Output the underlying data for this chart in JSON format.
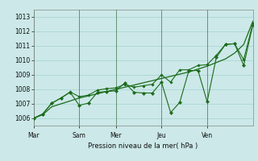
{
  "xlabel": "Pression niveau de la mer( hPa )",
  "background_color": "#cce8e8",
  "plot_bg_color": "#cce8e8",
  "grid_color": "#99cccc",
  "line_color": "#1a6b1a",
  "ylim": [
    1005.5,
    1013.5
  ],
  "yticks": [
    1006,
    1007,
    1008,
    1009,
    1010,
    1011,
    1012,
    1013
  ],
  "xtick_labels": [
    "Mar",
    "Sam",
    "Mer",
    "Jeu",
    "Ven"
  ],
  "xtick_positions": [
    0,
    5,
    9,
    14,
    19
  ],
  "vline_positions": [
    0,
    5,
    9,
    14,
    19,
    24
  ],
  "xlim": [
    0,
    24
  ],
  "series1_x": [
    0,
    1,
    2,
    3,
    4,
    5,
    6,
    7,
    8,
    9,
    10,
    11,
    12,
    13,
    14,
    15,
    16,
    17,
    18,
    19,
    20,
    21,
    22,
    23,
    24
  ],
  "series1_y": [
    1006.0,
    1006.25,
    1006.8,
    1007.0,
    1007.2,
    1007.4,
    1007.55,
    1007.7,
    1007.85,
    1008.0,
    1008.15,
    1008.3,
    1008.45,
    1008.6,
    1008.75,
    1008.9,
    1009.05,
    1009.2,
    1009.4,
    1009.6,
    1009.85,
    1010.1,
    1010.5,
    1011.1,
    1012.7
  ],
  "series2_x": [
    0,
    1,
    2,
    3,
    4,
    5,
    6,
    7,
    8,
    9,
    10,
    11,
    12,
    13,
    14,
    15,
    16,
    17,
    18,
    19,
    20,
    21,
    22,
    23,
    24
  ],
  "series2_y": [
    1006.0,
    1006.3,
    1007.05,
    1007.4,
    1007.8,
    1006.9,
    1007.05,
    1007.8,
    1007.85,
    1007.9,
    1008.45,
    1007.8,
    1007.75,
    1007.75,
    1008.5,
    1006.4,
    1007.1,
    1009.3,
    1009.3,
    1007.15,
    1010.2,
    1011.1,
    1011.15,
    1009.65,
    1012.45
  ],
  "series3_x": [
    0,
    1,
    2,
    3,
    4,
    5,
    6,
    7,
    8,
    9,
    10,
    11,
    12,
    13,
    14,
    15,
    16,
    17,
    18,
    19,
    20,
    21,
    22,
    23,
    24
  ],
  "series3_y": [
    1006.0,
    1006.3,
    1007.05,
    1007.4,
    1007.82,
    1007.5,
    1007.6,
    1007.95,
    1008.05,
    1008.1,
    1008.35,
    1008.15,
    1008.25,
    1008.35,
    1009.0,
    1008.5,
    1009.35,
    1009.35,
    1009.65,
    1009.7,
    1010.35,
    1011.1,
    1011.15,
    1010.05,
    1012.55
  ],
  "vline_color": "#336633",
  "marker_color": "#1a6b1a"
}
